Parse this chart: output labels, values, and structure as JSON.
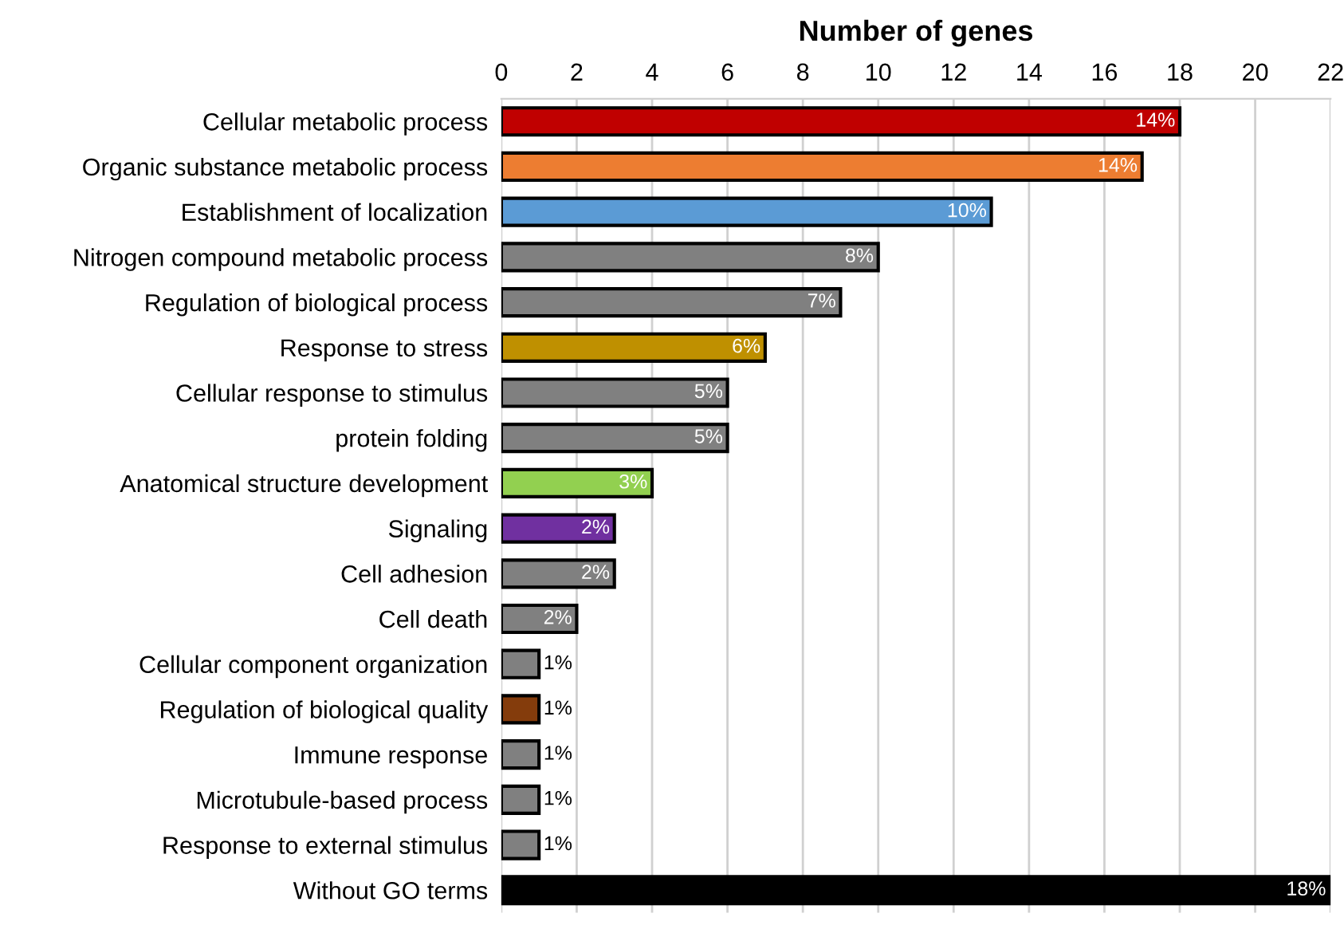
{
  "chart_data": {
    "type": "bar",
    "orientation": "horizontal",
    "xlabel": "Number of genes",
    "categories": [
      "Cellular metabolic process",
      "Organic substance metabolic process",
      "Establishment of localization",
      "Nitrogen compound metabolic process",
      "Regulation of biological process",
      "Response to stress",
      "Cellular response to stimulus",
      "protein folding",
      "Anatomical structure development",
      "Signaling",
      "Cell adhesion",
      "Cell death",
      "Cellular component organization",
      "Regulation of biological quality",
      "Immune response",
      "Microtubule-based process",
      "Response to external stimulus",
      "Without GO terms"
    ],
    "values": [
      18,
      17,
      13,
      10,
      9,
      7,
      6,
      6,
      4,
      3,
      3,
      2,
      1,
      1,
      1,
      1,
      1,
      22
    ],
    "colors": [
      "#c00000",
      "#ed7d31",
      "#5b9bd5",
      "#808080",
      "#808080",
      "#bf9000",
      "#808080",
      "#808080",
      "#92d050",
      "#7030a0",
      "#808080",
      "#808080",
      "#808080",
      "#843c0c",
      "#808080",
      "#808080",
      "#808080",
      "#000000"
    ],
    "annotations": [
      {
        "text": "14%",
        "x": 18,
        "y": "Cellular metabolic process"
      },
      {
        "text": "14%",
        "x": 17,
        "y": "Organic substance metabolic process"
      },
      {
        "text": "10%",
        "x": 13,
        "y": "Establishment of localization"
      },
      {
        "text": "8%",
        "x": 10,
        "y": "Nitrogen compound metabolic process"
      },
      {
        "text": "7%",
        "x": 9,
        "y": "Regulation of biological process"
      },
      {
        "text": "6%",
        "x": 7,
        "y": "Response to stress"
      },
      {
        "text": "5%",
        "x": 6,
        "y": "Cellular response to stimulus"
      },
      {
        "text": "5%",
        "x": 6,
        "y": "protein folding"
      },
      {
        "text": "3%",
        "x": 4,
        "y": "Anatomical structure development"
      },
      {
        "text": "2%",
        "x": 3,
        "y": "Signaling"
      },
      {
        "text": "2%",
        "x": 3,
        "y": "Cell adhesion"
      },
      {
        "text": "2%",
        "x": 2,
        "y": "Cell death"
      },
      {
        "text": "1%",
        "x": 1,
        "y": "Cellular component organization"
      },
      {
        "text": "1%",
        "x": 1,
        "y": "Regulation of biological quality"
      },
      {
        "text": "1%",
        "x": 1,
        "y": "Immune response"
      },
      {
        "text": "1%",
        "x": 1,
        "y": "Microtubule-based process"
      },
      {
        "text": "1%",
        "x": 1,
        "y": "Response to external stimulus"
      },
      {
        "text": "18%",
        "x": 22,
        "y": "Without GO terms"
      }
    ],
    "xlim": [
      0,
      22
    ],
    "xticks": [
      0,
      2,
      4,
      6,
      8,
      10,
      12,
      14,
      16,
      18,
      20,
      22
    ],
    "grid": "x"
  }
}
